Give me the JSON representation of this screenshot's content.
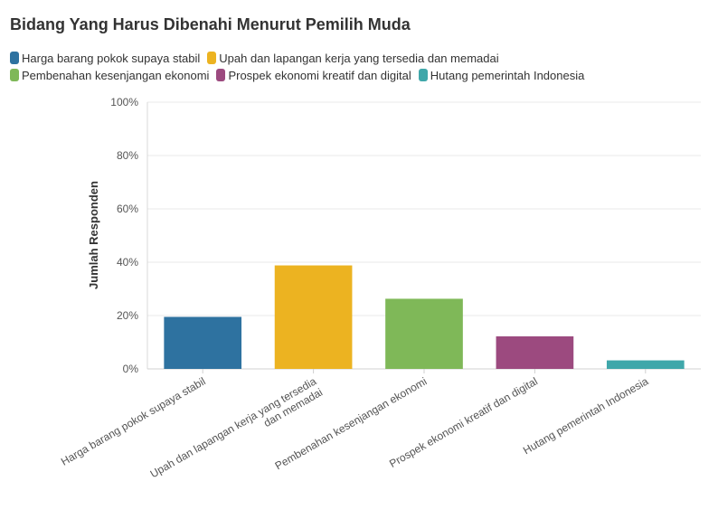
{
  "chart_data": {
    "type": "bar",
    "title": "Bidang Yang Harus Dibenahi Menurut Pemilih Muda",
    "ylabel": "Jumlah Responden",
    "xlabel": "",
    "ylim": [
      0,
      100
    ],
    "yticks": [
      0,
      20,
      40,
      60,
      80,
      100
    ],
    "ytick_labels": [
      "0%",
      "20%",
      "40%",
      "60%",
      "80%",
      "100%"
    ],
    "grid": true,
    "legend_position": "top-left",
    "categories": [
      "Harga barang pokok supaya stabil",
      "Upah dan lapangan kerja yang tersedia dan memadai",
      "Pembenahan kesenjangan ekonomi",
      "Prospek ekonomi kreatif dan digital",
      "Hutang pemerintah Indonesia"
    ],
    "tick_label_lines": [
      [
        "Harga barang pokok supaya stabil"
      ],
      [
        "Upah dan lapangan kerja yang tersedia",
        "dan memadai"
      ],
      [
        "Pembenahan kesenjangan ekonomi"
      ],
      [
        "Prospek ekonomi kreatif dan digital"
      ],
      [
        "Hutang pemerintah Indonesia"
      ]
    ],
    "values": [
      19.5,
      38.8,
      26.3,
      12.2,
      3.2
    ],
    "colors": [
      "#2e72a0",
      "#ecb321",
      "#7fb858",
      "#9c4a7f",
      "#3fa7aa"
    ]
  }
}
